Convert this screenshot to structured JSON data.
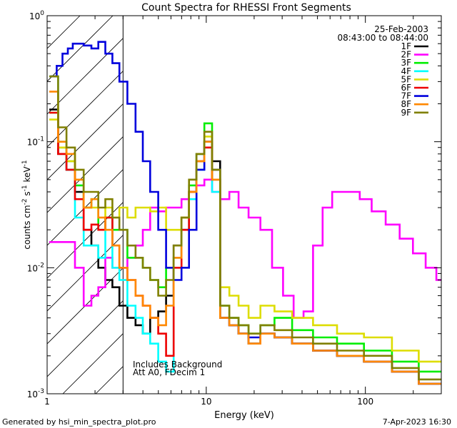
{
  "chart_data": {
    "type": "line",
    "title": "Count Spectra for RHESSI Front Segments",
    "xlabel": "Energy (keV)",
    "ylabel": {
      "base": "counts cm",
      "e1": "-2",
      "mid1": " s",
      "e2": "-1",
      "mid2": " keV",
      "e3": "-1"
    },
    "xscale": "log",
    "yscale": "log",
    "xlim": [
      1,
      300
    ],
    "ylim": [
      0.001,
      1
    ],
    "x_ticks": [
      {
        "value": 1,
        "label": "1"
      },
      {
        "value": 10,
        "label": "10"
      },
      {
        "value": 100,
        "label": "100"
      }
    ],
    "y_ticks": [
      {
        "value": 0.001,
        "base": "10",
        "exp": "-3"
      },
      {
        "value": 0.01,
        "base": "10",
        "exp": "-2"
      },
      {
        "value": 0.1,
        "base": "10",
        "exp": "-1"
      },
      {
        "value": 1,
        "base": "10",
        "exp": "0"
      }
    ],
    "hatched_region": {
      "x_start": 1,
      "x_end": 3
    },
    "legend": {
      "placement": "top-right",
      "date": "25-Feb-2003",
      "time_range": "08:43:00 to 08:44:00"
    },
    "annotations": [
      "Includes Background",
      "Att A0, FDecim 1"
    ],
    "footer_left": "Generated by hsi_min_spectra_plot.pro",
    "footer_right": "7-Apr-2023 16:30",
    "series": [
      {
        "name": "1F",
        "color": "#000000",
        "x": [
          1.1,
          1.25,
          1.4,
          1.6,
          1.8,
          2.0,
          2.2,
          2.45,
          2.7,
          3.0,
          3.4,
          3.8,
          4.2,
          4.7,
          5.3,
          5.9,
          6.6,
          7.4,
          8.2,
          9.2,
          10.3,
          11.5,
          13,
          15,
          17,
          20,
          24,
          30,
          40,
          55,
          80,
          120,
          180,
          260
        ],
        "y": [
          0.18,
          0.08,
          0.06,
          0.04,
          0.02,
          0.015,
          0.01,
          0.008,
          0.007,
          0.005,
          0.004,
          0.0035,
          0.003,
          0.004,
          0.0045,
          0.006,
          0.015,
          0.02,
          0.04,
          0.08,
          0.1,
          0.07,
          0.004,
          0.0035,
          0.003,
          0.0025,
          0.003,
          0.0028,
          0.0025,
          0.0022,
          0.002,
          0.0018,
          0.0015,
          0.0012
        ]
      },
      {
        "name": "2F",
        "color": "#ff00ff",
        "x": [
          1.1,
          1.25,
          1.4,
          1.6,
          1.8,
          2.0,
          2.2,
          2.45,
          2.7,
          3.0,
          3.4,
          3.8,
          4.2,
          4.7,
          5.3,
          5.9,
          6.6,
          7.4,
          8.2,
          9.2,
          10.3,
          11.5,
          13,
          15,
          17,
          20,
          24,
          28,
          33,
          38,
          44,
          50,
          58,
          66,
          75,
          85,
          100,
          120,
          150,
          180,
          220,
          260,
          300
        ],
        "y": [
          0.016,
          0.016,
          0.016,
          0.01,
          0.005,
          0.006,
          0.007,
          0.012,
          0.01,
          0.01,
          0.012,
          0.015,
          0.02,
          0.03,
          0.028,
          0.03,
          0.03,
          0.035,
          0.04,
          0.045,
          0.05,
          0.04,
          0.035,
          0.04,
          0.03,
          0.025,
          0.02,
          0.01,
          0.006,
          0.004,
          0.0045,
          0.015,
          0.03,
          0.04,
          0.04,
          0.04,
          0.035,
          0.028,
          0.022,
          0.017,
          0.013,
          0.01,
          0.008
        ]
      },
      {
        "name": "3F",
        "color": "#00ee00",
        "x": [
          1.1,
          1.25,
          1.4,
          1.6,
          1.8,
          2.0,
          2.2,
          2.45,
          2.7,
          3.0,
          3.4,
          3.8,
          4.2,
          4.7,
          5.3,
          5.9,
          6.6,
          7.4,
          8.2,
          9.2,
          10.3,
          11.5,
          13,
          15,
          17,
          20,
          24,
          30,
          40,
          55,
          80,
          120,
          180,
          260
        ],
        "y": [
          0.17,
          0.09,
          0.07,
          0.045,
          0.03,
          0.035,
          0.02,
          0.025,
          0.02,
          0.02,
          0.012,
          0.012,
          0.01,
          0.008,
          0.007,
          0.01,
          0.012,
          0.025,
          0.045,
          0.08,
          0.14,
          0.05,
          0.005,
          0.004,
          0.0035,
          0.003,
          0.0035,
          0.004,
          0.0032,
          0.0028,
          0.0025,
          0.0022,
          0.0018,
          0.0015
        ]
      },
      {
        "name": "4F",
        "color": "#00ffff",
        "x": [
          1.1,
          1.25,
          1.4,
          1.6,
          1.8,
          2.0,
          2.2,
          2.45,
          2.7,
          3.0,
          3.4,
          3.8,
          4.2,
          4.7,
          5.3,
          5.9,
          6.6,
          7.4,
          8.2,
          9.2,
          10.3,
          11.5,
          13,
          15,
          17,
          20,
          24,
          30,
          40,
          55,
          80,
          120,
          180,
          260
        ],
        "y": [
          0.33,
          0.1,
          0.06,
          0.025,
          0.015,
          0.015,
          0.012,
          0.02,
          0.01,
          0.008,
          0.005,
          0.004,
          0.003,
          0.0025,
          0.0018,
          0.0015,
          0.01,
          0.02,
          0.035,
          0.06,
          0.09,
          0.04,
          0.004,
          0.0035,
          0.003,
          0.0025,
          0.003,
          0.0028,
          0.0025,
          0.0022,
          0.002,
          0.0018,
          0.0015,
          0.0012
        ]
      },
      {
        "name": "5F",
        "color": "#dddd00",
        "x": [
          1.1,
          1.25,
          1.4,
          1.6,
          1.8,
          2.0,
          2.2,
          2.45,
          2.7,
          3.0,
          3.4,
          3.8,
          4.2,
          4.7,
          5.3,
          5.9,
          6.6,
          7.4,
          8.2,
          9.2,
          10.3,
          11.5,
          13,
          15,
          17,
          20,
          24,
          30,
          40,
          55,
          80,
          120,
          180,
          260
        ],
        "y": [
          0.15,
          0.09,
          0.07,
          0.05,
          0.03,
          0.03,
          0.025,
          0.03,
          0.025,
          0.03,
          0.025,
          0.03,
          0.03,
          0.028,
          0.03,
          0.02,
          0.02,
          0.025,
          0.04,
          0.07,
          0.11,
          0.06,
          0.007,
          0.006,
          0.005,
          0.004,
          0.005,
          0.0045,
          0.004,
          0.0035,
          0.003,
          0.0028,
          0.0022,
          0.0018
        ]
      },
      {
        "name": "6F",
        "color": "#ee0000",
        "x": [
          1.1,
          1.25,
          1.4,
          1.6,
          1.8,
          2.0,
          2.2,
          2.45,
          2.7,
          3.0,
          3.4,
          3.8,
          4.2,
          4.7,
          5.3,
          5.9,
          6.6,
          7.4,
          8.2,
          9.2,
          10.3,
          11.5,
          13,
          15,
          17,
          20,
          24,
          30,
          40,
          55,
          80,
          120,
          180,
          260
        ],
        "y": [
          0.17,
          0.08,
          0.06,
          0.035,
          0.02,
          0.022,
          0.02,
          0.025,
          0.015,
          0.01,
          0.008,
          0.006,
          0.005,
          0.004,
          0.003,
          0.002,
          0.01,
          0.02,
          0.04,
          0.07,
          0.09,
          0.05,
          0.004,
          0.0035,
          0.003,
          0.0025,
          0.003,
          0.0028,
          0.0025,
          0.0022,
          0.002,
          0.0018,
          0.0015,
          0.0012
        ]
      },
      {
        "name": "7F",
        "color": "#0000dd",
        "x": [
          1.1,
          1.2,
          1.3,
          1.4,
          1.5,
          1.6,
          1.8,
          2.0,
          2.2,
          2.45,
          2.7,
          3.0,
          3.4,
          3.8,
          4.2,
          4.7,
          5.3,
          5.9,
          6.6,
          7.4,
          8.2,
          9.2,
          10.3,
          11.5,
          13,
          15,
          17,
          20,
          24,
          30,
          40,
          55,
          80,
          120,
          180,
          260
        ],
        "y": [
          0.33,
          0.4,
          0.5,
          0.55,
          0.6,
          0.6,
          0.58,
          0.55,
          0.62,
          0.5,
          0.42,
          0.3,
          0.2,
          0.12,
          0.07,
          0.04,
          0.02,
          0.01,
          0.008,
          0.01,
          0.02,
          0.06,
          0.1,
          0.06,
          0.004,
          0.0035,
          0.003,
          0.0028,
          0.003,
          0.0028,
          0.0025,
          0.0022,
          0.002,
          0.0018,
          0.0015,
          0.0012
        ]
      },
      {
        "name": "8F",
        "color": "#ff8800",
        "x": [
          1.1,
          1.25,
          1.4,
          1.6,
          1.8,
          2.0,
          2.2,
          2.45,
          2.7,
          3.0,
          3.4,
          3.8,
          4.2,
          4.7,
          5.3,
          5.9,
          6.6,
          7.4,
          8.2,
          9.2,
          10.3,
          11.5,
          13,
          15,
          17,
          20,
          24,
          30,
          40,
          55,
          80,
          120,
          180,
          260
        ],
        "y": [
          0.25,
          0.1,
          0.08,
          0.05,
          0.03,
          0.035,
          0.025,
          0.02,
          0.015,
          0.01,
          0.008,
          0.006,
          0.005,
          0.004,
          0.0035,
          0.005,
          0.012,
          0.025,
          0.04,
          0.07,
          0.1,
          0.05,
          0.004,
          0.0035,
          0.003,
          0.0025,
          0.003,
          0.0028,
          0.0025,
          0.0022,
          0.002,
          0.0018,
          0.0015,
          0.0012
        ]
      },
      {
        "name": "9F",
        "color": "#808000",
        "x": [
          1.1,
          1.25,
          1.4,
          1.6,
          1.8,
          2.0,
          2.2,
          2.45,
          2.7,
          3.0,
          3.4,
          3.8,
          4.2,
          4.7,
          5.3,
          5.9,
          6.6,
          7.4,
          8.2,
          9.2,
          10.3,
          11.5,
          13,
          15,
          17,
          20,
          24,
          30,
          40,
          55,
          80,
          120,
          180,
          260
        ],
        "y": [
          0.33,
          0.13,
          0.09,
          0.06,
          0.04,
          0.04,
          0.03,
          0.035,
          0.025,
          0.02,
          0.015,
          0.012,
          0.01,
          0.008,
          0.006,
          0.008,
          0.015,
          0.025,
          0.05,
          0.08,
          0.12,
          0.06,
          0.005,
          0.004,
          0.0035,
          0.003,
          0.0035,
          0.0032,
          0.0028,
          0.0025,
          0.0022,
          0.002,
          0.0016,
          0.0013
        ]
      }
    ]
  }
}
